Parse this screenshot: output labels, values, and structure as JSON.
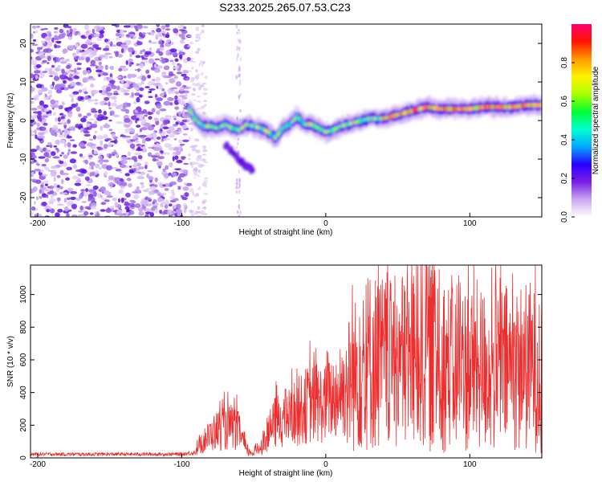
{
  "title": "S233.2025.265.07.53.C23",
  "chart_data": [
    {
      "type": "heatmap",
      "xlabel": "Height of straight line (km)",
      "ylabel": "Frequency (Hz)",
      "xlim": [
        -205,
        150
      ],
      "ylim": [
        -25,
        25
      ],
      "xticks": [
        -200,
        -100,
        0,
        100
      ],
      "yticks": [
        -20,
        -10,
        0,
        10,
        20
      ],
      "colorbar": {
        "label": "Normalized spectral amplitude",
        "range": [
          0,
          1
        ],
        "ticks": [
          "0.0",
          "0.2",
          "0.4",
          "0.6",
          "0.8"
        ],
        "colors": [
          "#ffffff",
          "#c9a6f0",
          "#7a1fe6",
          "#2a00ff",
          "#00a8ff",
          "#00ffd0",
          "#00ff30",
          "#a8ff00",
          "#fff200",
          "#ff9a00",
          "#ff1500",
          "#ff006e"
        ]
      },
      "ridge": {
        "x": [
          -95,
          -90,
          -85,
          -80,
          -75,
          -70,
          -65,
          -60,
          -55,
          -50,
          -45,
          -40,
          -35,
          -30,
          -25,
          -20,
          -15,
          -10,
          -5,
          0,
          5,
          10,
          15,
          20,
          25,
          30,
          40,
          50,
          60,
          70,
          80,
          90,
          100,
          110,
          120,
          130,
          140,
          150
        ],
        "freq": [
          3,
          0,
          -1.5,
          -1.5,
          -2,
          -1,
          -2,
          -2.5,
          -1,
          -1.5,
          -2,
          -3,
          -4.5,
          -2,
          -1,
          1,
          -1,
          -1,
          -2,
          -3,
          -2.5,
          -1.5,
          -1,
          -0.5,
          0,
          0.5,
          0.5,
          1.5,
          2.5,
          3.5,
          3,
          3,
          3,
          3.5,
          3.5,
          3.5,
          4,
          4
        ]
      },
      "branch": {
        "x": [
          -70,
          -65,
          -60,
          -55,
          -50
        ],
        "freq": [
          -6,
          -8,
          -10,
          -12,
          -13
        ]
      },
      "noise_region_x": [
        -205,
        -95
      ]
    },
    {
      "type": "line",
      "xlabel": "Height of straight line (km)",
      "ylabel": "SNR (10 * v/v)",
      "xlim": [
        -205,
        150
      ],
      "ylim": [
        0,
        1180
      ],
      "xticks": [
        -200,
        -100,
        0,
        100
      ],
      "yticks": [
        0,
        200,
        400,
        600,
        800,
        1000
      ],
      "color": "#ee2e2e",
      "envelope_x": [
        -205,
        -100,
        -90,
        -85,
        -80,
        -75,
        -70,
        -65,
        -60,
        -57,
        -55,
        -50,
        -45,
        -40,
        -35,
        -30,
        -25,
        -20,
        -15,
        -10,
        -5,
        0,
        5,
        10,
        15,
        20,
        25,
        30,
        35,
        40,
        45,
        50,
        55,
        60,
        65,
        70,
        75,
        80,
        85,
        90,
        95,
        100,
        105,
        110,
        115,
        120,
        125,
        130,
        135,
        140,
        145,
        150
      ],
      "envelope_snr": [
        30,
        30,
        45,
        100,
        140,
        170,
        180,
        190,
        160,
        90,
        40,
        30,
        70,
        140,
        220,
        240,
        250,
        280,
        310,
        340,
        330,
        330,
        370,
        400,
        440,
        500,
        560,
        600,
        590,
        580,
        560,
        580,
        600,
        610,
        640,
        650,
        640,
        600,
        560,
        520,
        540,
        560,
        560,
        540,
        520,
        540,
        550,
        560,
        550,
        560,
        560,
        560
      ],
      "peaks": [
        {
          "x": 28,
          "snr": 1060
        },
        {
          "x": 36,
          "snr": 1050
        },
        {
          "x": 42,
          "snr": 975
        },
        {
          "x": 55,
          "snr": 1020
        },
        {
          "x": 64,
          "snr": 1175
        },
        {
          "x": 73,
          "snr": 980
        },
        {
          "x": 82,
          "snr": 950
        },
        {
          "x": 91,
          "snr": 1060
        }
      ]
    }
  ]
}
